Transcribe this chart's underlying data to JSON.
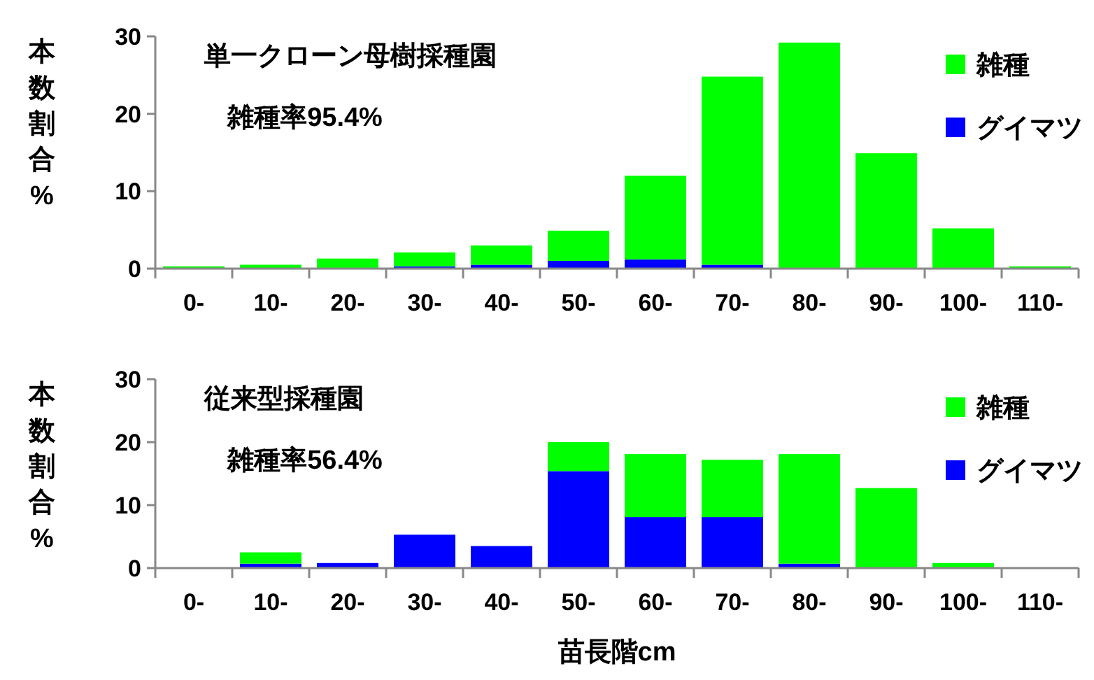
{
  "chart_data": [
    {
      "type": "bar",
      "title": "単一クローン母樹採種園",
      "ylabel": "本数割合%",
      "annotations": [
        "雑種率95.4%"
      ],
      "categories": [
        "0-",
        "10-",
        "20-",
        "30-",
        "40-",
        "50-",
        "60-",
        "70-",
        "80-",
        "90-",
        "100-",
        "110-"
      ],
      "stacked": true,
      "ylim": [
        0,
        30
      ],
      "yticks": [
        0,
        10,
        20,
        30
      ],
      "legend": "top right",
      "series": [
        {
          "name": "グイマツ",
          "color": "#0000ff",
          "values": [
            0,
            0,
            0,
            0.3,
            0.5,
            1.0,
            1.2,
            0.5,
            0,
            0,
            0,
            0
          ]
        },
        {
          "name": "雑種",
          "color": "#00ff00",
          "values": [
            0.3,
            0.5,
            1.3,
            1.8,
            2.5,
            3.9,
            10.8,
            24.3,
            29.2,
            14.9,
            5.2,
            0.3
          ]
        }
      ]
    },
    {
      "type": "bar",
      "title": "従来型採種園",
      "ylabel": "本数割合%",
      "xlabel": "苗長階cm",
      "annotations": [
        "雑種率56.4%"
      ],
      "categories": [
        "0-",
        "10-",
        "20-",
        "30-",
        "40-",
        "50-",
        "60-",
        "70-",
        "80-",
        "90-",
        "100-",
        "110-"
      ],
      "stacked": true,
      "ylim": [
        0,
        30
      ],
      "yticks": [
        0,
        10,
        20,
        30
      ],
      "legend": "top right",
      "series": [
        {
          "name": "グイマツ",
          "color": "#0000ff",
          "values": [
            0,
            0.7,
            0.8,
            5.3,
            3.5,
            15.4,
            8.1,
            8.1,
            0.7,
            0,
            0,
            0
          ]
        },
        {
          "name": "雑種",
          "color": "#00ff00",
          "values": [
            0,
            1.8,
            0,
            0,
            0,
            4.6,
            10.0,
            9.1,
            17.4,
            12.7,
            0.8,
            0
          ]
        }
      ]
    }
  ]
}
